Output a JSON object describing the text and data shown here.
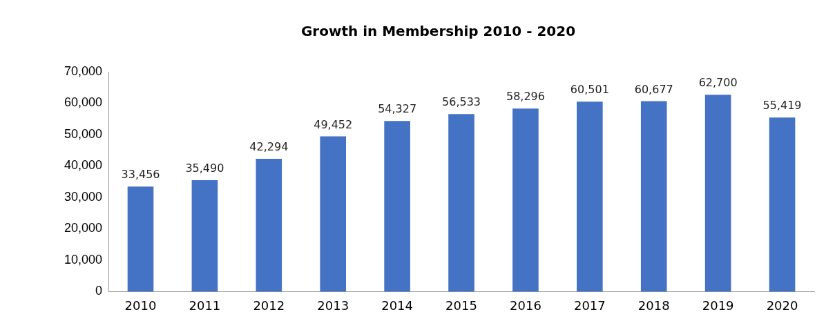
{
  "chart_data": {
    "type": "bar",
    "title": "Growth in Membership 2010 - 2020",
    "categories": [
      "2010",
      "2011",
      "2012",
      "2013",
      "2014",
      "2015",
      "2016",
      "2017",
      "2018",
      "2019",
      "2020"
    ],
    "values": [
      33456,
      35490,
      42294,
      49452,
      54327,
      56533,
      58296,
      60501,
      60677,
      62700,
      55419
    ],
    "color": "#4472c4",
    "ylim": [
      0,
      70000
    ],
    "yticks": [
      {
        "value": 0,
        "label": "0"
      },
      {
        "value": 10000,
        "label": "10,000"
      },
      {
        "value": 20000,
        "label": "20,000"
      },
      {
        "value": 30000,
        "label": "30,000"
      },
      {
        "value": 40000,
        "label": "40,000"
      },
      {
        "value": 50000,
        "label": "50,000"
      },
      {
        "value": 60000,
        "label": "60,000"
      },
      {
        "value": 70000,
        "label": "70,000"
      }
    ],
    "value_labels": [
      "33,456",
      "35,490",
      "42,294",
      "49,452",
      "54,327",
      "56,533",
      "58,296",
      "60,501",
      "60,677",
      "62,700",
      "55,419"
    ],
    "grid": false
  }
}
